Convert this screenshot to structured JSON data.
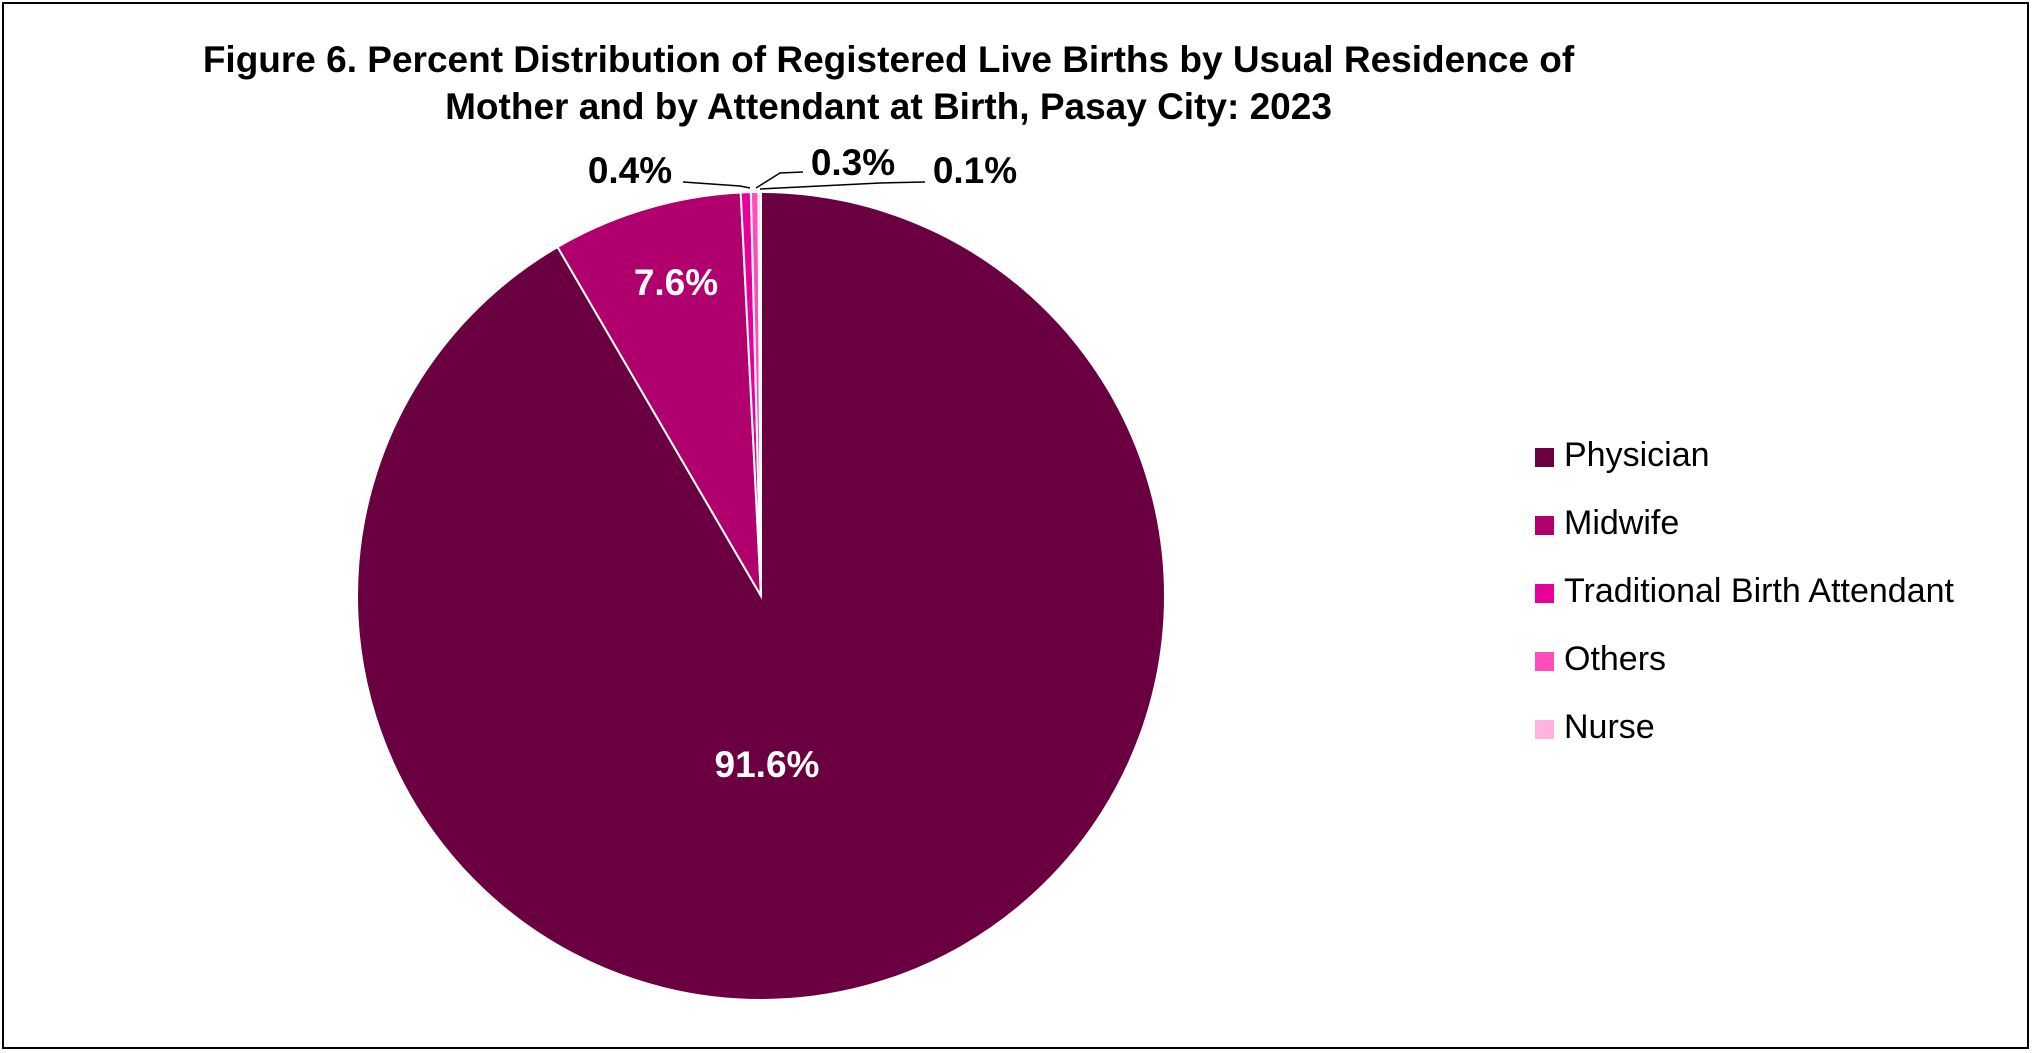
{
  "chart_data": {
    "type": "pie",
    "title": [
      "Figure 6. Percent Distribution of Registered Live Births by Usual Residence of",
      "Mother and by Attendant at Birth, Pasay City: 2023"
    ],
    "slices": [
      {
        "name": "Physician",
        "value": 91.6,
        "label": "91.6%",
        "color": "#6b0040",
        "label_color": "#ffffff"
      },
      {
        "name": "Midwife",
        "value": 7.6,
        "label": "7.6%",
        "color": "#b0006e",
        "label_color": "#ffffff"
      },
      {
        "name": "Traditional Birth Attendant",
        "value": 0.4,
        "label": "0.4%",
        "color": "#e8009a",
        "label_color": "#000000"
      },
      {
        "name": "Others",
        "value": 0.3,
        "label": "0.3%",
        "color": "#ff4dbb",
        "label_color": "#000000"
      },
      {
        "name": "Nurse",
        "value": 0.1,
        "label": "0.1%",
        "color": "#ffb3df",
        "label_color": "#000000"
      }
    ],
    "start_angle": "12 o'clock",
    "direction": "clockwise",
    "legend_position": "right"
  }
}
